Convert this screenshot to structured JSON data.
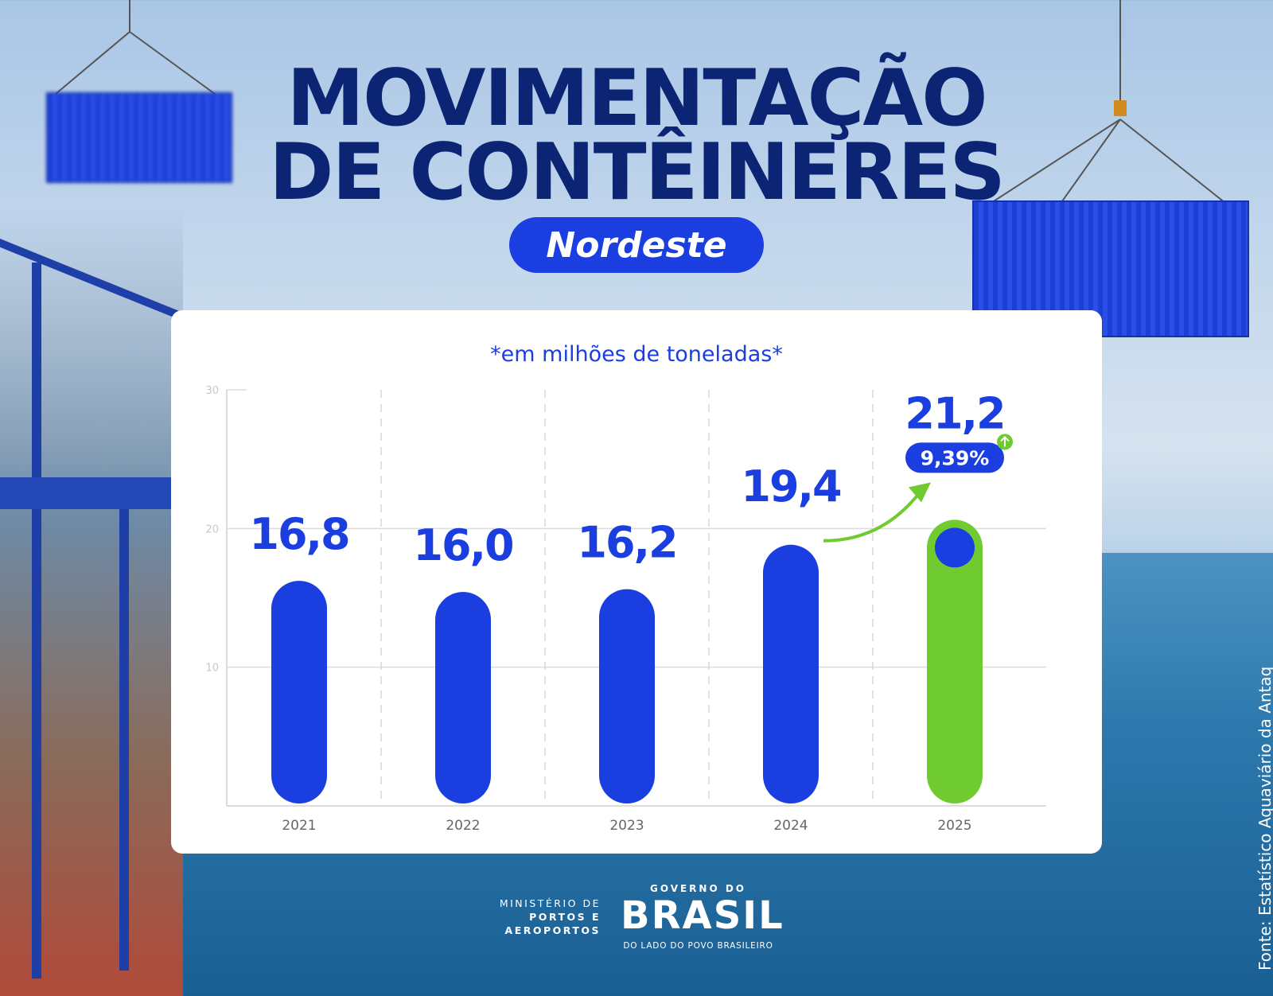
{
  "header": {
    "title_line1": "MOVIMENTAÇÃO",
    "title_line2": "DE CONTÊINERES",
    "region_pill": "Nordeste"
  },
  "chart_data": {
    "type": "bar",
    "subtitle": "*em milhões de toneladas*",
    "categories": [
      "2021",
      "2022",
      "2023",
      "2024",
      "2025"
    ],
    "values": [
      16.8,
      16.0,
      16.2,
      19.4,
      21.2
    ],
    "data_labels": [
      "16,8",
      "16,0",
      "16,2",
      "19,4",
      "21,2"
    ],
    "ylim": [
      0,
      30
    ],
    "yticks": [
      "10",
      "20",
      "30"
    ],
    "grid": true,
    "highlight": {
      "category": "2025",
      "change_label": "9,39%",
      "direction": "up"
    },
    "colors": {
      "bar": "#1a3ee0",
      "highlight_bar": "#6fcb2f",
      "label": "#1a3ee0"
    }
  },
  "footer": {
    "ministry_line1": "MINISTÉRIO DE",
    "ministry_line2": "PORTOS E",
    "ministry_line3": "AEROPORTOS",
    "gov_top": "GOVERNO DO",
    "gov_brasil": "BRASIL",
    "gov_bottom": "DO LADO DO POVO BRASILEIRO",
    "source": "Fonte: Estatístico Aquaviário da Antaq"
  }
}
